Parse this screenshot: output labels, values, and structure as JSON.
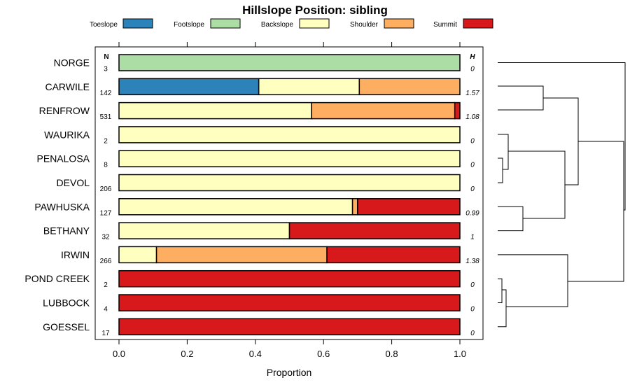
{
  "chart_data": {
    "type": "bar",
    "orientation": "horizontal",
    "stacked": true,
    "title": "Hillslope Position: sibling",
    "xlabel": "Proportion",
    "xlim": [
      0,
      1
    ],
    "xticks": [
      0.0,
      0.2,
      0.4,
      0.6,
      0.8,
      1.0
    ],
    "xtick_labels": [
      "0.0",
      "0.2",
      "0.4",
      "0.6",
      "0.8",
      "1.0"
    ],
    "n_header": "N",
    "h_header": "H",
    "legend_position": "top",
    "classes": [
      {
        "name": "Toeslope",
        "color": "#2b83ba"
      },
      {
        "name": "Footslope",
        "color": "#abdda4"
      },
      {
        "name": "Backslope",
        "color": "#ffffbf"
      },
      {
        "name": "Shoulder",
        "color": "#fdae61"
      },
      {
        "name": "Summit",
        "color": "#d7191c"
      }
    ],
    "rows": [
      {
        "label": "NORGE",
        "n": "3",
        "h": "0",
        "values": [
          0,
          1.0,
          0,
          0,
          0
        ]
      },
      {
        "label": "CARWILE",
        "n": "142",
        "h": "1.57",
        "values": [
          0.41,
          0,
          0.295,
          0.295,
          0
        ]
      },
      {
        "label": "RENFROW",
        "n": "531",
        "h": "1.08",
        "values": [
          0,
          0,
          0.565,
          0.42,
          0.015
        ]
      },
      {
        "label": "WAURIKA",
        "n": "2",
        "h": "0",
        "values": [
          0,
          0,
          1.0,
          0,
          0
        ]
      },
      {
        "label": "PENALOSA",
        "n": "8",
        "h": "0",
        "values": [
          0,
          0,
          1.0,
          0,
          0
        ]
      },
      {
        "label": "DEVOL",
        "n": "206",
        "h": "0",
        "values": [
          0,
          0,
          1.0,
          0,
          0
        ]
      },
      {
        "label": "PAWHUSKA",
        "n": "127",
        "h": "0.99",
        "values": [
          0,
          0,
          0.685,
          0.015,
          0.3
        ]
      },
      {
        "label": "BETHANY",
        "n": "32",
        "h": "1",
        "values": [
          0,
          0,
          0.5,
          0,
          0.5
        ]
      },
      {
        "label": "IRWIN",
        "n": "266",
        "h": "1.38",
        "values": [
          0,
          0,
          0.11,
          0.5,
          0.39
        ]
      },
      {
        "label": "POND CREEK",
        "n": "2",
        "h": "0",
        "values": [
          0,
          0,
          0,
          0,
          1.0
        ]
      },
      {
        "label": "LUBBOCK",
        "n": "4",
        "h": "0",
        "values": [
          0,
          0,
          0,
          0,
          1.0
        ]
      },
      {
        "label": "GOESSEL",
        "n": "17",
        "h": "0",
        "values": [
          0,
          0,
          0,
          0,
          1.0
        ]
      }
    ],
    "dendrogram": {
      "position": "right",
      "leaf_order": [
        "NORGE",
        "CARWILE",
        "RENFROW",
        "WAURIKA",
        "PENALOSA",
        "DEVOL",
        "PAWHUSKA",
        "BETHANY",
        "IRWIN",
        "POND CREEK",
        "LUBBOCK",
        "GOESSEL"
      ]
    }
  }
}
